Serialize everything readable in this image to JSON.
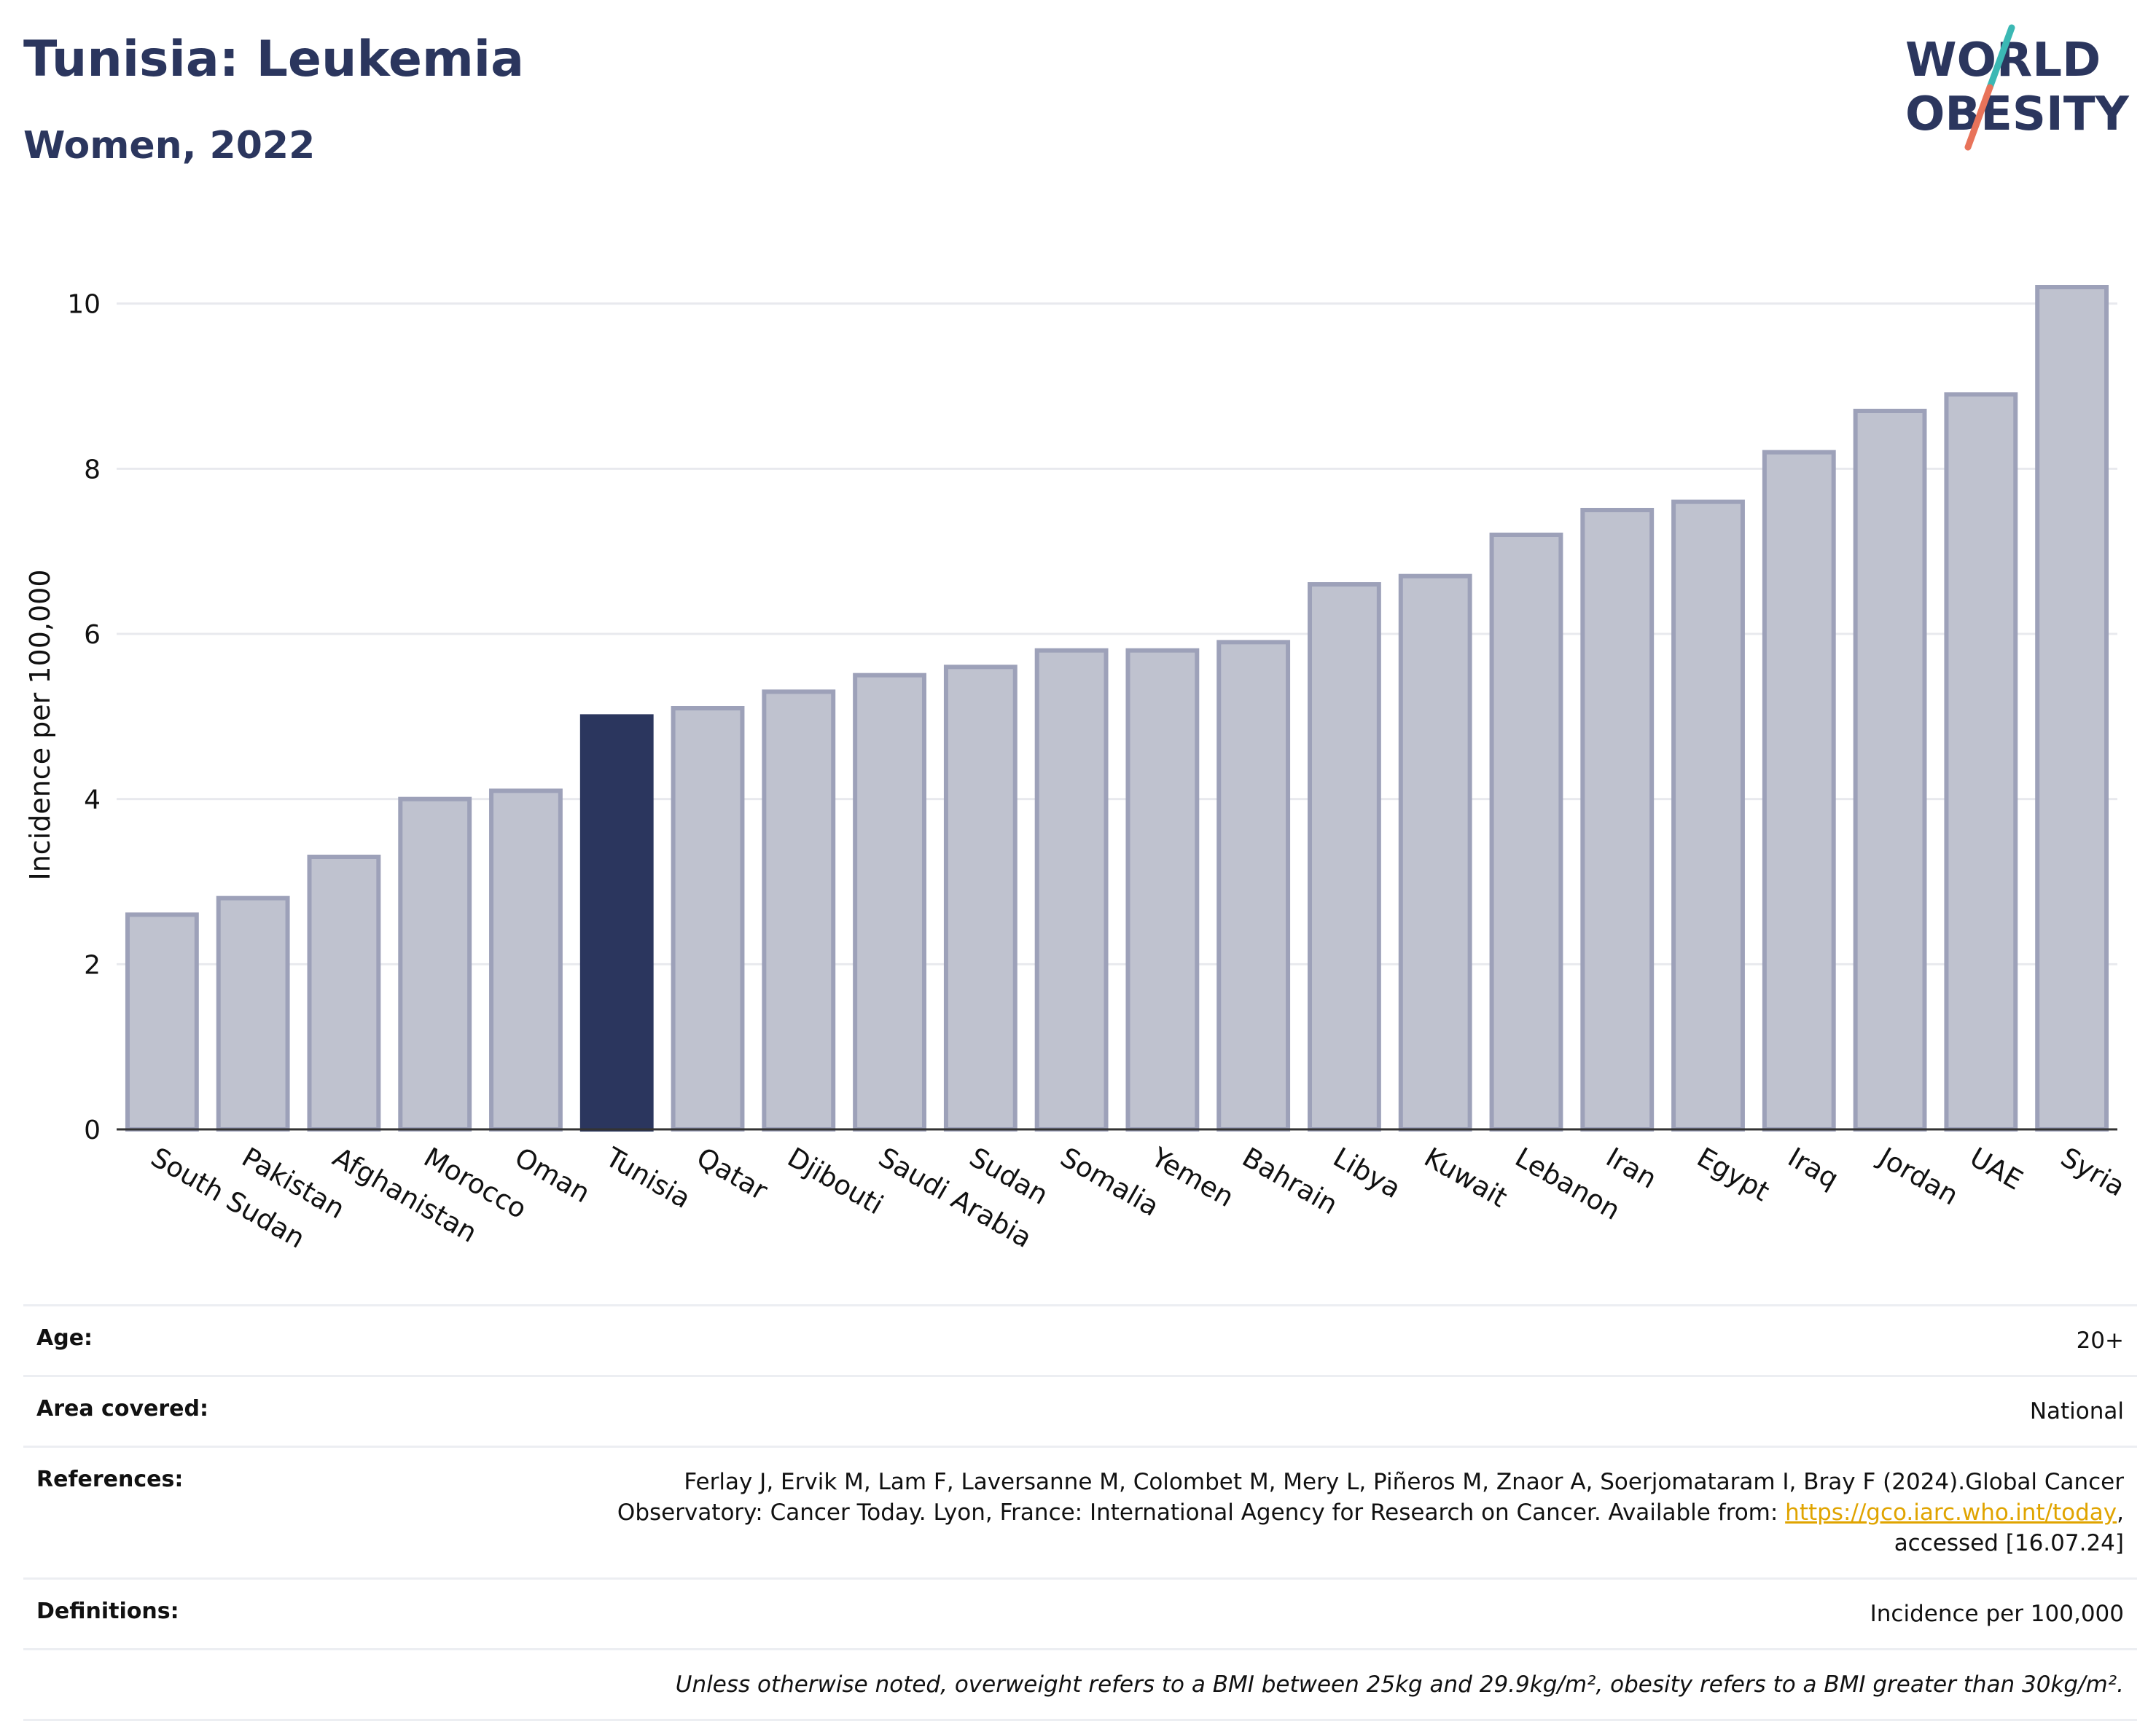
{
  "header": {
    "title": "Tunisia: Leukemia",
    "subtitle": "Women, 2022"
  },
  "logo": {
    "line1": "WORLD",
    "line2": "OBESITY"
  },
  "colors": {
    "highlight": "#2b365e",
    "bar_fill": "#bfc2cf",
    "bar_stroke": "#9da1b9",
    "grid": "#e8e9ee",
    "logo_teal": "#3bb8b4",
    "logo_coral": "#e8735a"
  },
  "chart_data": {
    "type": "bar",
    "ylabel": "Incidence per 100,000",
    "ylim": [
      0,
      10.5
    ],
    "yticks": [
      0,
      2,
      4,
      6,
      8,
      10
    ],
    "highlight": "Tunisia",
    "grid": true,
    "categories": [
      "South Sudan",
      "Pakistan",
      "Afghanistan",
      "Morocco",
      "Oman",
      "Tunisia",
      "Qatar",
      "Djibouti",
      "Saudi Arabia",
      "Sudan",
      "Somalia",
      "Yemen",
      "Bahrain",
      "Libya",
      "Kuwait",
      "Lebanon",
      "Iran",
      "Egypt",
      "Iraq",
      "Jordan",
      "UAE",
      "Syria"
    ],
    "values": [
      2.6,
      2.8,
      3.3,
      4.0,
      4.1,
      5.0,
      5.1,
      5.3,
      5.5,
      5.6,
      5.8,
      5.8,
      5.9,
      6.6,
      6.7,
      7.2,
      7.5,
      7.6,
      8.2,
      8.7,
      8.9,
      10.2
    ]
  },
  "info": {
    "age_label": "Age:",
    "age_value": "20+",
    "area_label": "Area covered:",
    "area_value": "National",
    "references_label": "References:",
    "references_line1": "Ferlay J, Ervik M, Lam F, Laversanne M, Colombet M, Mery L, Piñeros M, Znaor A, Soerjomataram I, Bray F (2024).Global Cancer",
    "references_line2": "Observatory: Cancer Today. Lyon, France: International Agency for Research on Cancer. Available from: ",
    "references_link": "https://gco.iarc.who.int/today",
    "references_line3": "accessed [16.07.24]",
    "definitions_label": "Definitions:",
    "definitions_value": "Incidence per 100,000",
    "note": "Unless otherwise noted, overweight refers to a BMI between 25kg and 29.9kg/m², obesity refers to a BMI greater than 30kg/m²."
  }
}
